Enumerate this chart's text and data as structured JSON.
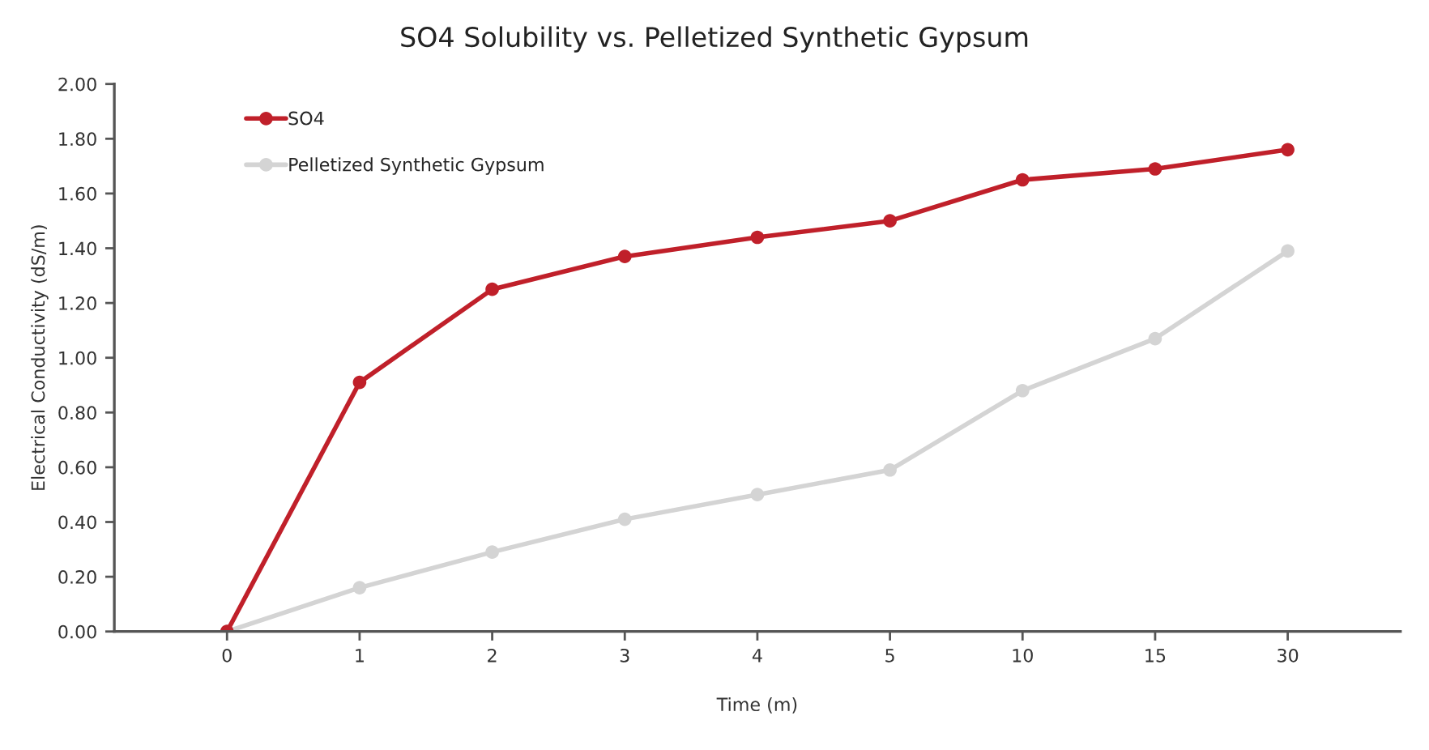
{
  "chart_data": {
    "type": "line",
    "title": "SO4 Solubility vs. Pelletized Synthetic Gypsum",
    "xlabel": "Time (m)",
    "ylabel": "Electrical Conductivity (dS/m)",
    "categories": [
      "0",
      "1",
      "2",
      "3",
      "4",
      "5",
      "10",
      "15",
      "30"
    ],
    "series": [
      {
        "name": "SO4",
        "color": "#c0202a",
        "values": [
          0,
          0.91,
          1.25,
          1.37,
          1.44,
          1.5,
          1.65,
          1.69,
          1.76
        ]
      },
      {
        "name": "Pelletized Synthetic Gypsum",
        "color": "#d4d4d4",
        "values": [
          0,
          0.16,
          0.29,
          0.41,
          0.5,
          0.59,
          0.88,
          1.07,
          1.39
        ]
      }
    ],
    "ylim": [
      0,
      2
    ],
    "yticks": [
      {
        "value": 0,
        "label": "0.00"
      },
      {
        "value": 0.2,
        "label": "0.20"
      },
      {
        "value": 0.4,
        "label": "0.40"
      },
      {
        "value": 0.6,
        "label": "0.60"
      },
      {
        "value": 0.8,
        "label": "0.80"
      },
      {
        "value": 1.0,
        "label": "1.00"
      },
      {
        "value": 1.2,
        "label": "1.20"
      },
      {
        "value": 1.4,
        "label": "1.40"
      },
      {
        "value": 1.6,
        "label": "1.60"
      },
      {
        "value": 1.8,
        "label": "1.80"
      },
      {
        "value": 2.0,
        "label": "2.00"
      }
    ],
    "grid": false,
    "legend": "top left",
    "marker": "circle",
    "line_style": "solid"
  }
}
